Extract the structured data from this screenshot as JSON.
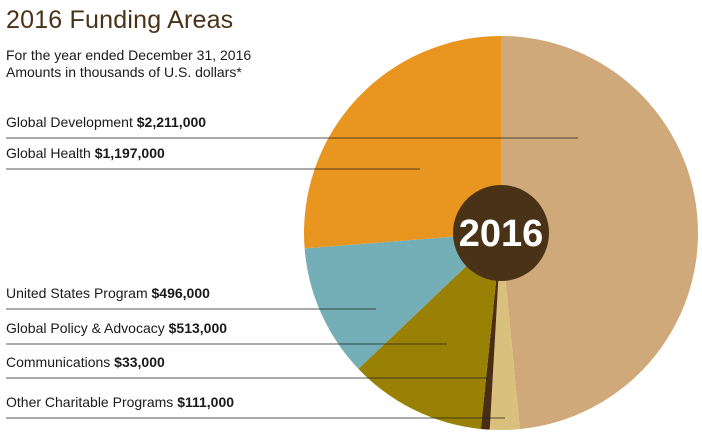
{
  "title": "2016 Funding Areas",
  "subtitle_line1": "For the year ended December 31, 2016",
  "subtitle_line2": "Amounts in thousands of U.S. dollars*",
  "center_label": "2016",
  "chart_data": {
    "type": "pie",
    "title": "2016 Funding Areas",
    "categories": [
      "Global Development",
      "Global Health",
      "United States Program",
      "Global Policy & Advocacy",
      "Communications",
      "Other Charitable Programs"
    ],
    "values": [
      2211000,
      1197000,
      496000,
      513000,
      33000,
      111000
    ],
    "value_labels": [
      "$2,211,000",
      "$1,197,000",
      "$496,000",
      "$513,000",
      "$33,000",
      "$111,000"
    ],
    "colors": [
      "#cfa97a",
      "#e8961f",
      "#74aeb6",
      "#988104",
      "#4a2e14",
      "#d9c07c"
    ],
    "center_color": "#4a3216",
    "legend": "left-with-leader-lines"
  }
}
